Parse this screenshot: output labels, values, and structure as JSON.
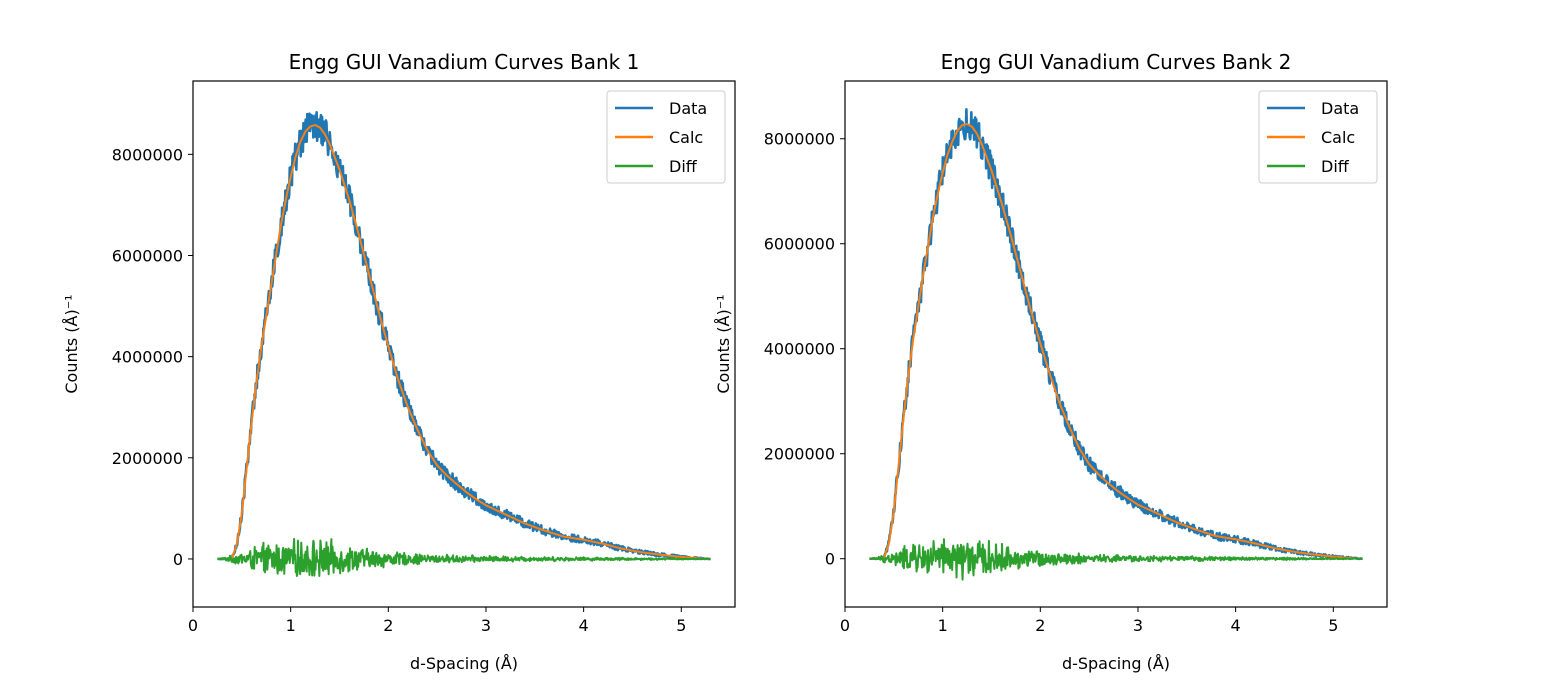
{
  "chart_data": [
    {
      "type": "line",
      "title": "Engg GUI Vanadium Curves Bank 1",
      "xlabel": "d-Spacing (Å)",
      "ylabel": "Counts (Å)⁻¹",
      "xlim": [
        0,
        5.55
      ],
      "ylim": [
        -950000,
        9450000
      ],
      "xticks": [
        0,
        1,
        2,
        3,
        4,
        5
      ],
      "yticks": [
        0,
        2000000,
        4000000,
        6000000,
        8000000
      ],
      "ytick_labels": [
        "0",
        "2000000",
        "4000000",
        "6000000",
        "8000000"
      ],
      "legend_position": "top-right",
      "x": [
        0.25,
        0.35,
        0.4,
        0.45,
        0.5,
        0.55,
        0.6,
        0.65,
        0.7,
        0.75,
        0.8,
        0.85,
        0.9,
        0.95,
        1.0,
        1.05,
        1.1,
        1.15,
        1.2,
        1.25,
        1.3,
        1.35,
        1.4,
        1.45,
        1.5,
        1.6,
        1.7,
        1.8,
        1.9,
        2.0,
        2.1,
        2.2,
        2.3,
        2.4,
        2.5,
        2.6,
        2.7,
        2.8,
        2.9,
        3.0,
        3.2,
        3.4,
        3.6,
        3.8,
        4.0,
        4.2,
        4.4,
        4.6,
        4.8,
        5.0,
        5.2,
        5.3
      ],
      "series": [
        {
          "name": "Data",
          "color": "#1f77b4",
          "values": [
            0,
            0,
            20000,
            300000,
            900000,
            1800000,
            2700000,
            3500000,
            4200000,
            4800000,
            5400000,
            6000000,
            6600000,
            7100000,
            7550000,
            7950000,
            8250000,
            8450000,
            8550000,
            8580000,
            8530000,
            8400000,
            8200000,
            7950000,
            7700000,
            7100000,
            6400000,
            5650000,
            4900000,
            4200000,
            3550000,
            3000000,
            2550000,
            2150000,
            1850000,
            1650000,
            1480000,
            1320000,
            1180000,
            1060000,
            880000,
            700000,
            560000,
            440000,
            380000,
            300000,
            200000,
            130000,
            80000,
            40000,
            10000,
            0
          ]
        },
        {
          "name": "Calc",
          "color": "#ff7f0e",
          "values": [
            0,
            0,
            20000,
            300000,
            900000,
            1800000,
            2700000,
            3500000,
            4200000,
            4800000,
            5400000,
            6000000,
            6600000,
            7100000,
            7550000,
            7950000,
            8250000,
            8450000,
            8550000,
            8580000,
            8530000,
            8400000,
            8200000,
            7950000,
            7700000,
            7100000,
            6400000,
            5650000,
            4900000,
            4200000,
            3550000,
            3000000,
            2550000,
            2150000,
            1850000,
            1650000,
            1480000,
            1320000,
            1180000,
            1060000,
            880000,
            700000,
            560000,
            440000,
            380000,
            300000,
            200000,
            130000,
            80000,
            40000,
            10000,
            0
          ]
        },
        {
          "name": "Diff",
          "color": "#2ca02c",
          "values": [
            0,
            0,
            0,
            0,
            0,
            0,
            0,
            0,
            0,
            0,
            0,
            0,
            0,
            0,
            0,
            0,
            0,
            0,
            0,
            0,
            0,
            0,
            0,
            0,
            0,
            0,
            0,
            0,
            0,
            0,
            0,
            0,
            0,
            0,
            0,
            0,
            0,
            0,
            0,
            0,
            0,
            0,
            0,
            0,
            0,
            0,
            0,
            0,
            0,
            0,
            0,
            0
          ],
          "noise_amplitude": [
            0,
            50000,
            80000,
            120000,
            150000,
            200000,
            250000,
            300000,
            320000,
            350000,
            350000,
            380000,
            380000,
            400000,
            400000,
            420000,
            420000,
            450000,
            450000,
            450000,
            430000,
            420000,
            400000,
            380000,
            350000,
            300000,
            260000,
            230000,
            200000,
            170000,
            150000,
            130000,
            120000,
            110000,
            100000,
            90000,
            85000,
            80000,
            75000,
            70000,
            60000,
            55000,
            50000,
            45000,
            40000,
            35000,
            30000,
            25000,
            20000,
            15000,
            10000,
            0
          ]
        }
      ]
    },
    {
      "type": "line",
      "title": "Engg GUI Vanadium Curves Bank 2",
      "xlabel": "d-Spacing (Å)",
      "ylabel": "Counts (Å)⁻¹",
      "xlim": [
        0,
        5.55
      ],
      "ylim": [
        -920000,
        9100000
      ],
      "xticks": [
        0,
        1,
        2,
        3,
        4,
        5
      ],
      "yticks": [
        0,
        2000000,
        4000000,
        6000000,
        8000000
      ],
      "ytick_labels": [
        "0",
        "2000000",
        "4000000",
        "6000000",
        "8000000"
      ],
      "legend_position": "top-right",
      "x": [
        0.25,
        0.35,
        0.4,
        0.45,
        0.5,
        0.55,
        0.6,
        0.65,
        0.7,
        0.75,
        0.8,
        0.85,
        0.9,
        0.95,
        1.0,
        1.05,
        1.1,
        1.15,
        1.2,
        1.25,
        1.3,
        1.35,
        1.4,
        1.45,
        1.5,
        1.6,
        1.7,
        1.8,
        1.9,
        2.0,
        2.1,
        2.2,
        2.3,
        2.4,
        2.5,
        2.6,
        2.7,
        2.8,
        2.9,
        3.0,
        3.2,
        3.4,
        3.6,
        3.8,
        4.0,
        4.2,
        4.4,
        4.6,
        4.8,
        5.0,
        5.2,
        5.3
      ],
      "series": [
        {
          "name": "Data",
          "color": "#1f77b4",
          "values": [
            0,
            0,
            20000,
            300000,
            900000,
            1800000,
            2700000,
            3500000,
            4200000,
            4800000,
            5400000,
            5950000,
            6500000,
            6950000,
            7350000,
            7700000,
            7950000,
            8150000,
            8260000,
            8280000,
            8230000,
            8100000,
            7900000,
            7650000,
            7400000,
            6800000,
            6150000,
            5450000,
            4750000,
            4100000,
            3500000,
            2950000,
            2500000,
            2100000,
            1800000,
            1600000,
            1430000,
            1280000,
            1150000,
            1030000,
            860000,
            690000,
            550000,
            430000,
            370000,
            290000,
            200000,
            130000,
            80000,
            40000,
            10000,
            0
          ]
        },
        {
          "name": "Calc",
          "color": "#ff7f0e",
          "values": [
            0,
            0,
            20000,
            300000,
            900000,
            1800000,
            2700000,
            3500000,
            4200000,
            4800000,
            5400000,
            5950000,
            6500000,
            6950000,
            7350000,
            7700000,
            7950000,
            8150000,
            8260000,
            8280000,
            8230000,
            8100000,
            7900000,
            7650000,
            7400000,
            6800000,
            6150000,
            5450000,
            4750000,
            4100000,
            3500000,
            2950000,
            2500000,
            2100000,
            1800000,
            1600000,
            1430000,
            1280000,
            1150000,
            1030000,
            860000,
            690000,
            550000,
            430000,
            370000,
            290000,
            200000,
            130000,
            80000,
            40000,
            10000,
            0
          ]
        },
        {
          "name": "Diff",
          "color": "#2ca02c",
          "values": [
            0,
            0,
            0,
            0,
            0,
            0,
            0,
            0,
            0,
            0,
            0,
            0,
            0,
            0,
            0,
            0,
            0,
            0,
            0,
            0,
            0,
            0,
            0,
            0,
            0,
            0,
            0,
            0,
            0,
            0,
            0,
            0,
            0,
            0,
            0,
            0,
            0,
            0,
            0,
            0,
            0,
            0,
            0,
            0,
            0,
            0,
            0,
            0,
            0,
            0,
            0,
            0
          ],
          "noise_amplitude": [
            0,
            50000,
            80000,
            120000,
            150000,
            200000,
            250000,
            300000,
            320000,
            350000,
            350000,
            380000,
            380000,
            400000,
            400000,
            420000,
            420000,
            450000,
            450000,
            450000,
            430000,
            420000,
            400000,
            380000,
            350000,
            300000,
            260000,
            230000,
            200000,
            170000,
            150000,
            130000,
            120000,
            110000,
            100000,
            90000,
            85000,
            80000,
            75000,
            70000,
            60000,
            55000,
            50000,
            45000,
            40000,
            35000,
            30000,
            25000,
            20000,
            15000,
            10000,
            0
          ]
        }
      ]
    }
  ]
}
